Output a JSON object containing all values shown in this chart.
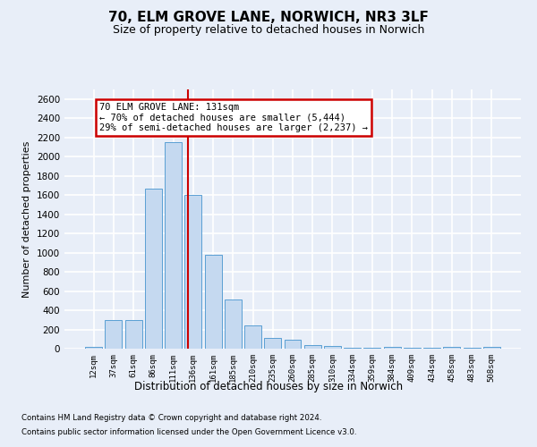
{
  "title": "70, ELM GROVE LANE, NORWICH, NR3 3LF",
  "subtitle": "Size of property relative to detached houses in Norwich",
  "xlabel": "Distribution of detached houses by size in Norwich",
  "ylabel": "Number of detached properties",
  "footer_line1": "Contains HM Land Registry data © Crown copyright and database right 2024.",
  "footer_line2": "Contains public sector information licensed under the Open Government Licence v3.0.",
  "bar_labels": [
    "12sqm",
    "37sqm",
    "61sqm",
    "86sqm",
    "111sqm",
    "136sqm",
    "161sqm",
    "185sqm",
    "210sqm",
    "235sqm",
    "260sqm",
    "285sqm",
    "310sqm",
    "334sqm",
    "359sqm",
    "384sqm",
    "409sqm",
    "434sqm",
    "458sqm",
    "483sqm",
    "508sqm"
  ],
  "bar_values": [
    20,
    295,
    295,
    1670,
    2150,
    1600,
    975,
    510,
    245,
    115,
    95,
    40,
    30,
    10,
    10,
    15,
    5,
    5,
    15,
    5,
    20
  ],
  "bar_color": "#c5d9f0",
  "bar_edge_color": "#5a9fd4",
  "annotation_title": "70 ELM GROVE LANE: 131sqm",
  "annotation_line1": "← 70% of detached houses are smaller (5,444)",
  "annotation_line2": "29% of semi-detached houses are larger (2,237) →",
  "vline_bin_index": 4.76,
  "ylim": [
    0,
    2700
  ],
  "yticks": [
    0,
    200,
    400,
    600,
    800,
    1000,
    1200,
    1400,
    1600,
    1800,
    2000,
    2200,
    2400,
    2600
  ],
  "bg_color": "#e8eef8",
  "grid_color": "#ffffff",
  "annotation_box_color": "#ffffff",
  "annotation_box_edge": "#cc0000",
  "vline_color": "#cc0000",
  "title_fontsize": 11,
  "subtitle_fontsize": 9
}
